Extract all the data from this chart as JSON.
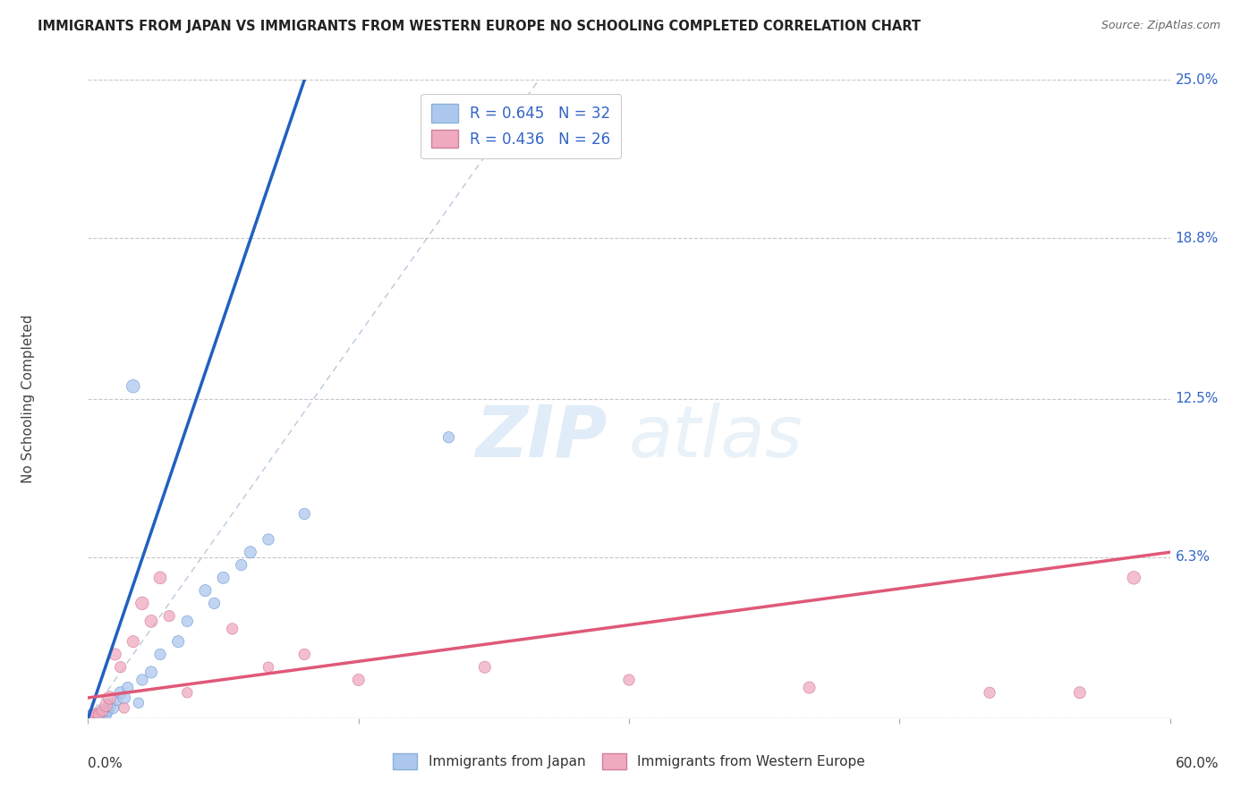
{
  "title": "IMMIGRANTS FROM JAPAN VS IMMIGRANTS FROM WESTERN EUROPE NO SCHOOLING COMPLETED CORRELATION CHART",
  "source": "Source: ZipAtlas.com",
  "ylabel": "No Schooling Completed",
  "watermark_zip": "ZIP",
  "watermark_atlas": "atlas",
  "legend_labels": [
    "Immigrants from Japan",
    "Immigrants from Western Europe"
  ],
  "series1_color": "#adc8ee",
  "series2_color": "#f0aac0",
  "line1_color": "#2060c0",
  "line2_color": "#e05878",
  "ref_line_color": "#b0c4d8",
  "r1": 0.645,
  "n1": 32,
  "r2": 0.436,
  "n2": 26,
  "xlim": [
    0.0,
    60.0
  ],
  "ylim": [
    0.0,
    25.0
  ],
  "background_color": "#ffffff",
  "grid_color": "#c8c8c8",
  "title_color": "#222222",
  "source_color": "#666666",
  "ytick_color": "#3264c8",
  "japan_x": [
    0.1,
    0.2,
    0.3,
    0.4,
    0.5,
    0.6,
    0.7,
    0.8,
    0.9,
    1.0,
    1.1,
    1.2,
    1.4,
    1.6,
    1.8,
    2.0,
    2.2,
    2.5,
    2.8,
    3.0,
    3.5,
    4.0,
    5.0,
    5.5,
    6.5,
    7.0,
    7.5,
    8.5,
    9.0,
    10.0,
    12.0,
    20.0
  ],
  "japan_y": [
    0.05,
    0.1,
    0.05,
    0.15,
    0.08,
    0.2,
    0.1,
    0.3,
    0.2,
    0.15,
    0.3,
    0.5,
    0.4,
    0.7,
    1.0,
    0.8,
    1.2,
    13.0,
    0.6,
    1.5,
    1.8,
    2.5,
    3.0,
    3.8,
    5.0,
    4.5,
    5.5,
    6.0,
    6.5,
    7.0,
    8.0,
    11.0
  ],
  "japan_sizes": [
    120,
    100,
    90,
    70,
    80,
    60,
    50,
    70,
    60,
    80,
    90,
    100,
    80,
    70,
    90,
    100,
    80,
    110,
    70,
    80,
    90,
    80,
    90,
    80,
    90,
    80,
    90,
    80,
    90,
    80,
    80,
    80
  ],
  "we_x": [
    0.1,
    0.2,
    0.4,
    0.6,
    0.8,
    1.0,
    1.2,
    1.5,
    1.8,
    2.0,
    2.5,
    3.0,
    3.5,
    4.0,
    4.5,
    5.5,
    8.0,
    10.0,
    12.0,
    15.0,
    22.0,
    30.0,
    40.0,
    50.0,
    55.0,
    58.0
  ],
  "we_y": [
    0.05,
    0.1,
    0.2,
    0.15,
    0.3,
    0.5,
    0.8,
    2.5,
    2.0,
    0.4,
    3.0,
    4.5,
    3.8,
    5.5,
    4.0,
    1.0,
    3.5,
    2.0,
    2.5,
    1.5,
    2.0,
    1.5,
    1.2,
    1.0,
    1.0,
    5.5
  ],
  "we_sizes": [
    80,
    70,
    60,
    80,
    90,
    100,
    110,
    90,
    80,
    70,
    90,
    110,
    100,
    100,
    80,
    70,
    80,
    70,
    80,
    90,
    90,
    80,
    90,
    80,
    90,
    110
  ],
  "blue_line_x": [
    0.0,
    12.0
  ],
  "blue_line_y": [
    0.0,
    25.0
  ],
  "pink_line_x": [
    0.0,
    60.0
  ],
  "pink_line_y": [
    0.8,
    6.5
  ],
  "ref_line_x": [
    0.0,
    25.0
  ],
  "ref_line_y": [
    0.0,
    25.0
  ]
}
